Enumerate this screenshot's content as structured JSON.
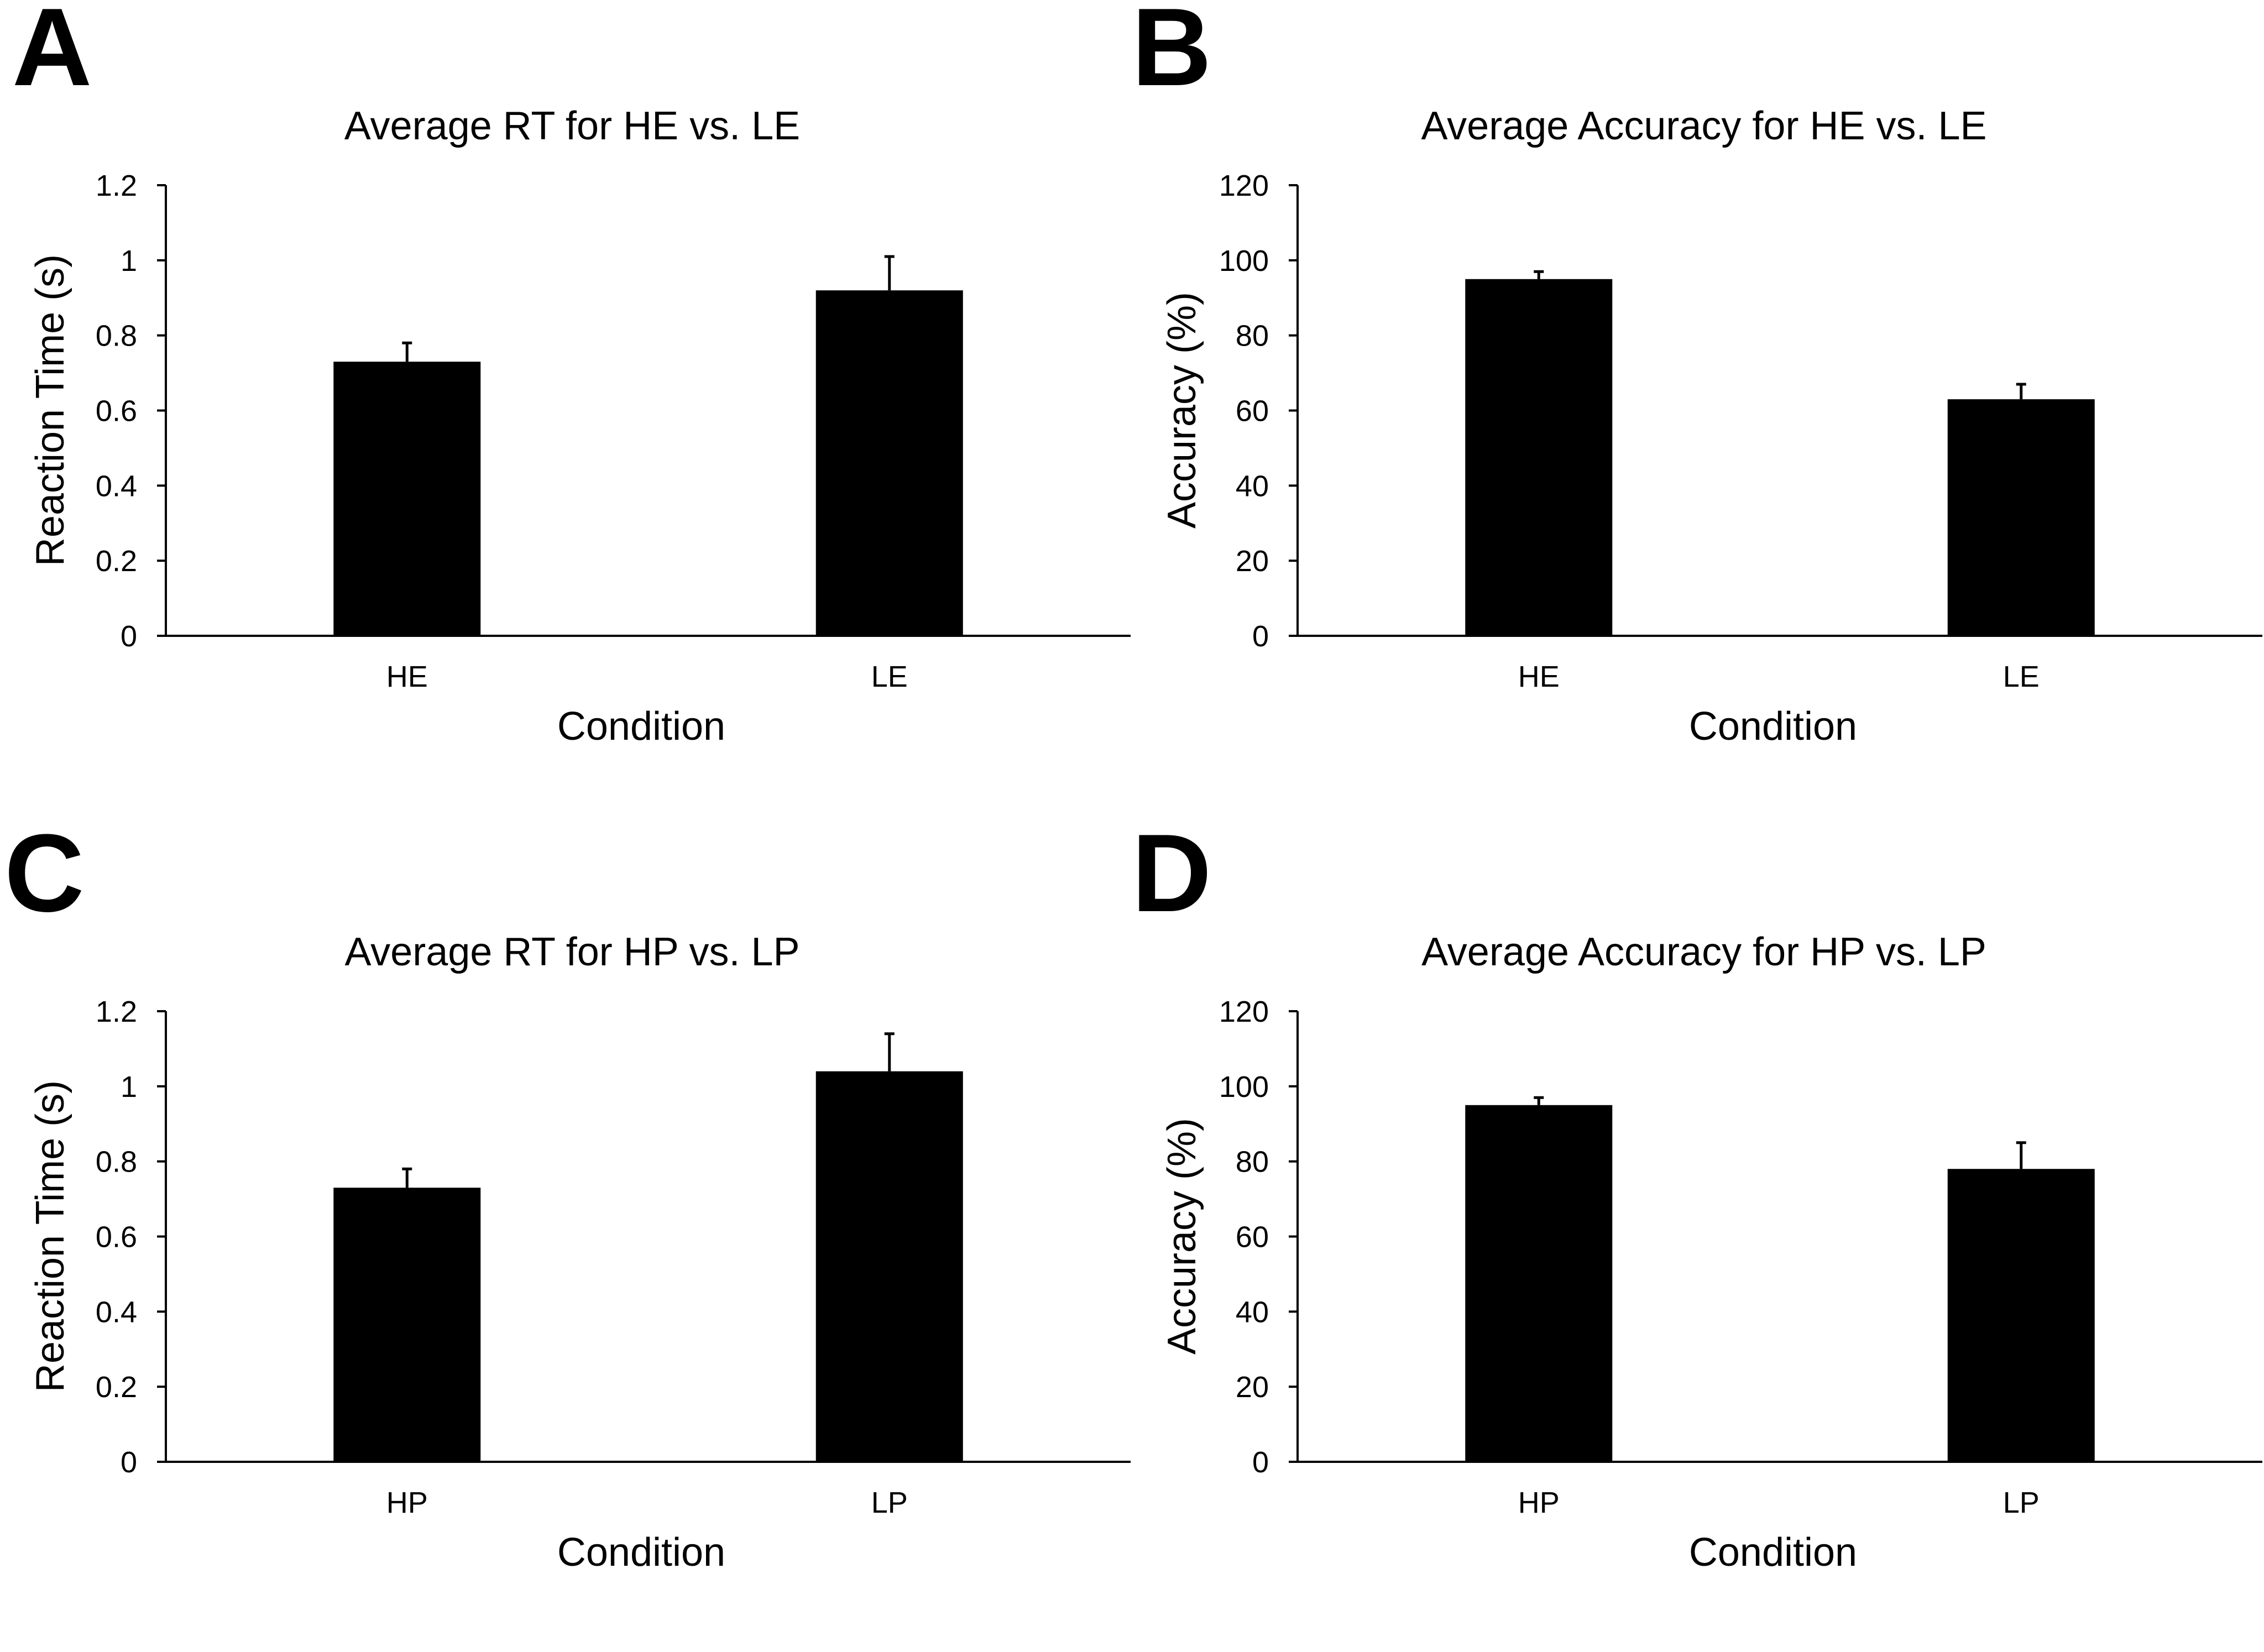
{
  "panels": [
    {
      "id": "a",
      "letter": "A"
    },
    {
      "id": "b",
      "letter": "B"
    },
    {
      "id": "c",
      "letter": "C"
    },
    {
      "id": "d",
      "letter": "D"
    }
  ],
  "colors": {
    "bar": "#000000",
    "axis": "#000000",
    "background": "#ffffff"
  },
  "chart_data": [
    {
      "type": "bar",
      "title": "Average RT for HE vs. LE",
      "xlabel": "Condition",
      "ylabel": "Reaction Time (s)",
      "categories": [
        "HE",
        "LE"
      ],
      "values": [
        0.73,
        0.92
      ],
      "errors": [
        0.05,
        0.09
      ],
      "ylim": [
        0,
        1.2
      ],
      "yticks": [
        "0",
        "0.2",
        "0.4",
        "0.6",
        "0.8",
        "1",
        "1.2"
      ],
      "grid": false
    },
    {
      "type": "bar",
      "title": "Average Accuracy for HE vs. LE",
      "xlabel": "Condition",
      "ylabel": "Accuracy (%)",
      "categories": [
        "HE",
        "LE"
      ],
      "values": [
        95,
        63
      ],
      "errors": [
        2,
        4
      ],
      "ylim": [
        0,
        120
      ],
      "yticks": [
        "0",
        "20",
        "40",
        "60",
        "80",
        "100",
        "120"
      ],
      "grid": false
    },
    {
      "type": "bar",
      "title": "Average RT for HP vs. LP",
      "xlabel": "Condition",
      "ylabel": "Reaction Time (s)",
      "categories": [
        "HP",
        "LP"
      ],
      "values": [
        0.73,
        1.04
      ],
      "errors": [
        0.05,
        0.1
      ],
      "ylim": [
        0,
        1.2
      ],
      "yticks": [
        "0",
        "0.2",
        "0.4",
        "0.6",
        "0.8",
        "1",
        "1.2"
      ],
      "grid": false
    },
    {
      "type": "bar",
      "title": "Average Accuracy for HP vs. LP",
      "xlabel": "Condition",
      "ylabel": "Accuracy (%)",
      "categories": [
        "HP",
        "LP"
      ],
      "values": [
        95,
        78
      ],
      "errors": [
        2,
        7
      ],
      "ylim": [
        0,
        120
      ],
      "yticks": [
        "0",
        "20",
        "40",
        "60",
        "80",
        "100",
        "120"
      ],
      "grid": false
    }
  ]
}
